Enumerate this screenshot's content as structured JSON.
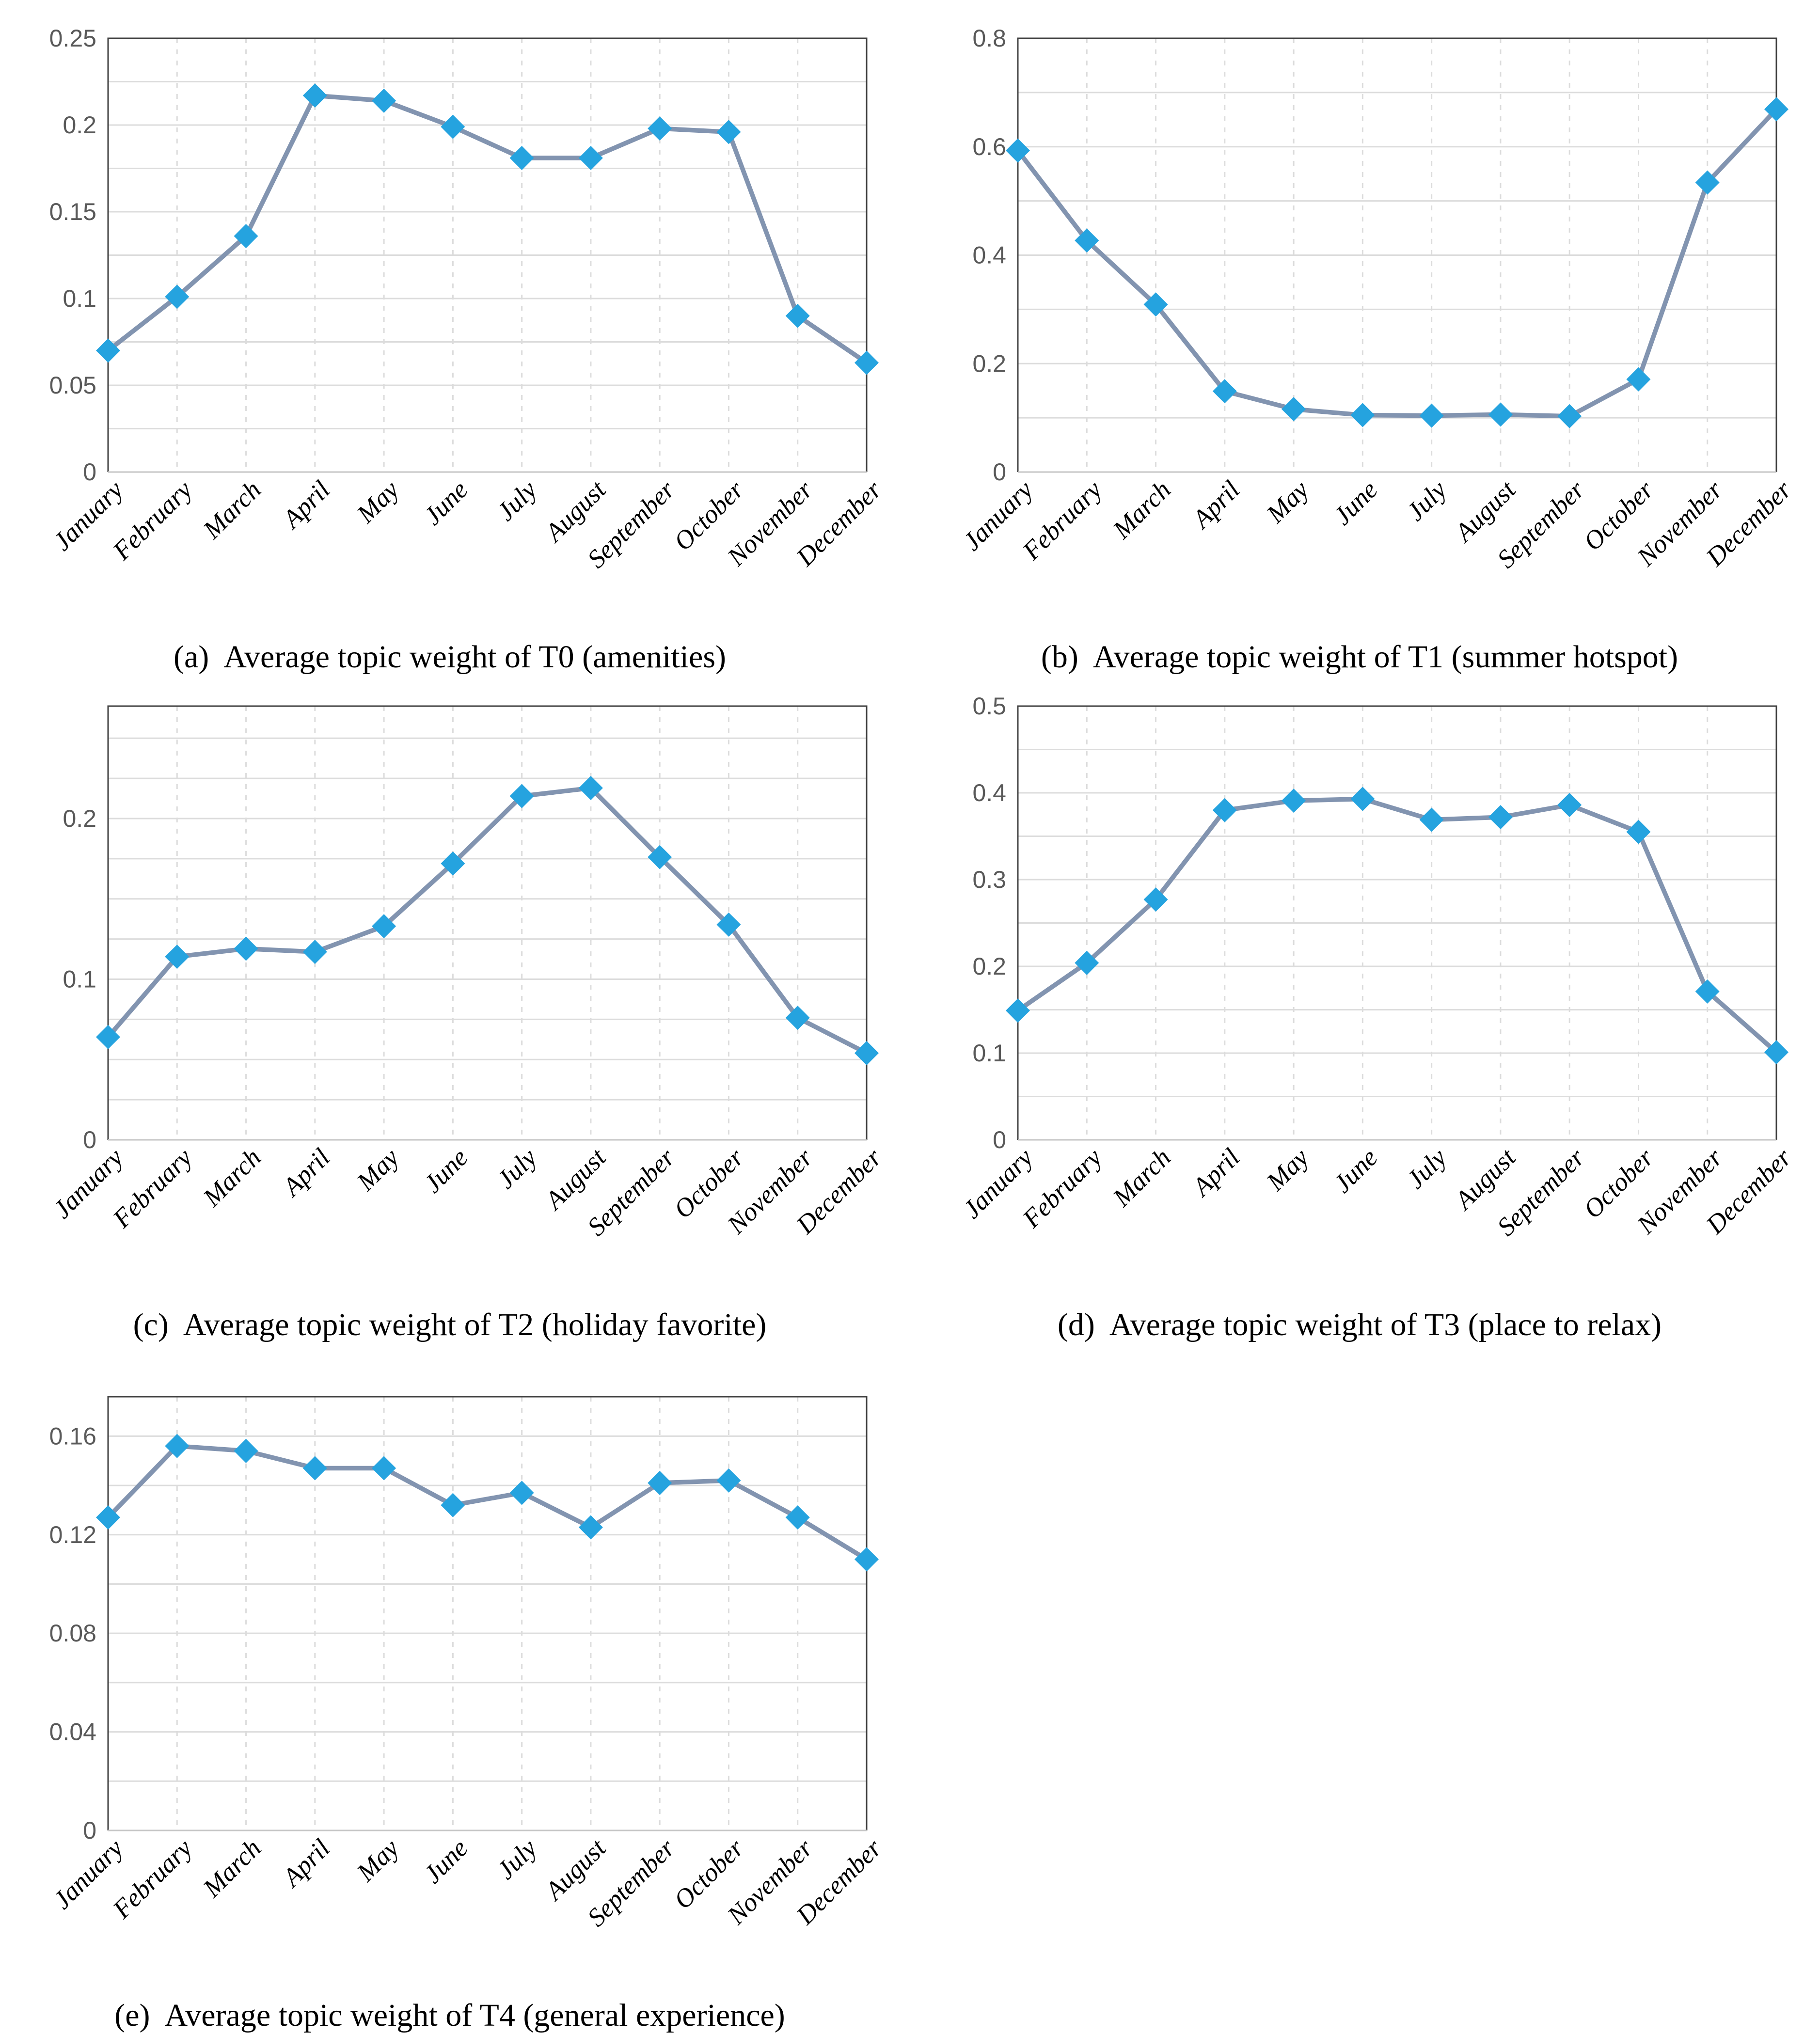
{
  "months": [
    "January",
    "February",
    "March",
    "April",
    "May",
    "June",
    "July",
    "August",
    "September",
    "October",
    "November",
    "December"
  ],
  "style": {
    "marker_color": "#25A3DF",
    "line_color": "#8294B0",
    "grid_color": "#DCDCDC",
    "border_color": "#404040",
    "bottom_axis_color": "#C6C6C6",
    "y_label_color": "#595959",
    "x_label_color": "#000000",
    "caption_color": "#000000"
  },
  "chart_data": [
    {
      "id": "a",
      "type": "line",
      "topic": "T0",
      "caption_label": "(a)",
      "caption_text": "Average topic weight of T0 (amenities)",
      "categories": [
        "January",
        "February",
        "March",
        "April",
        "May",
        "June",
        "July",
        "August",
        "September",
        "October",
        "November",
        "December"
      ],
      "values": [
        0.07,
        0.101,
        0.136,
        0.217,
        0.214,
        0.199,
        0.181,
        0.181,
        0.198,
        0.196,
        0.09,
        0.063
      ],
      "xlabel": "",
      "ylabel": "",
      "ylim": [
        0,
        0.25
      ],
      "y_ticks": [
        {
          "value": 0,
          "label": "0"
        },
        {
          "value": 0.05,
          "label": "0.05"
        },
        {
          "value": 0.1,
          "label": "0.1"
        },
        {
          "value": 0.15,
          "label": "0.15"
        },
        {
          "value": 0.2,
          "label": "0.2"
        },
        {
          "value": 0.25,
          "label": "0.25"
        }
      ],
      "grid_step": 0.025,
      "grid_max": 0.25,
      "grid": true,
      "legend": false
    },
    {
      "id": "b",
      "type": "line",
      "topic": "T1",
      "caption_label": "(b)",
      "caption_text": "Average topic weight of T1 (summer hotspot)",
      "categories": [
        "January",
        "February",
        "March",
        "April",
        "May",
        "June",
        "July",
        "August",
        "September",
        "October",
        "November",
        "December"
      ],
      "values": [
        0.593,
        0.427,
        0.309,
        0.149,
        0.116,
        0.105,
        0.104,
        0.106,
        0.103,
        0.171,
        0.534,
        0.669
      ],
      "xlabel": "",
      "ylabel": "",
      "ylim": [
        0,
        0.8
      ],
      "y_ticks": [
        {
          "value": 0,
          "label": "0"
        },
        {
          "value": 0.2,
          "label": "0.2"
        },
        {
          "value": 0.4,
          "label": "0.4"
        },
        {
          "value": 0.6,
          "label": "0.6"
        },
        {
          "value": 0.8,
          "label": "0.8"
        }
      ],
      "grid_step": 0.1,
      "grid_max": 0.8,
      "grid": true,
      "legend": false
    },
    {
      "id": "c",
      "type": "line",
      "topic": "T2",
      "caption_label": "(c)",
      "caption_text": "Average topic weight of T2 (holiday favorite)",
      "categories": [
        "January",
        "February",
        "March",
        "April",
        "May",
        "June",
        "July",
        "August",
        "September",
        "October",
        "November",
        "December"
      ],
      "values": [
        0.064,
        0.114,
        0.119,
        0.117,
        0.133,
        0.172,
        0.214,
        0.219,
        0.176,
        0.134,
        0.076,
        0.054
      ],
      "xlabel": "",
      "ylabel": "",
      "ylim": [
        0,
        0.27
      ],
      "y_ticks": [
        {
          "value": 0,
          "label": "0"
        },
        {
          "value": 0.1,
          "label": "0.1"
        },
        {
          "value": 0.2,
          "label": "0.2"
        }
      ],
      "grid_step": 0.025,
      "grid_max": 0.25,
      "grid": true,
      "legend": false
    },
    {
      "id": "d",
      "type": "line",
      "topic": "T3",
      "caption_label": "(d)",
      "caption_text": "Average topic weight of T3 (place to relax)",
      "categories": [
        "January",
        "February",
        "March",
        "April",
        "May",
        "June",
        "July",
        "August",
        "September",
        "October",
        "November",
        "December"
      ],
      "values": [
        0.149,
        0.204,
        0.277,
        0.38,
        0.391,
        0.393,
        0.369,
        0.372,
        0.386,
        0.355,
        0.171,
        0.101
      ],
      "xlabel": "",
      "ylabel": "",
      "ylim": [
        0,
        0.5
      ],
      "y_ticks": [
        {
          "value": 0,
          "label": "0"
        },
        {
          "value": 0.1,
          "label": "0.1"
        },
        {
          "value": 0.2,
          "label": "0.2"
        },
        {
          "value": 0.3,
          "label": "0.3"
        },
        {
          "value": 0.4,
          "label": "0.4"
        },
        {
          "value": 0.5,
          "label": "0.5"
        }
      ],
      "grid_step": 0.05,
      "grid_max": 0.5,
      "grid": true,
      "legend": false
    },
    {
      "id": "e",
      "type": "line",
      "topic": "T4",
      "caption_label": "(e)",
      "caption_text": "Average topic weight of T4 (general experience)",
      "categories": [
        "January",
        "February",
        "March",
        "April",
        "May",
        "June",
        "July",
        "August",
        "September",
        "October",
        "November",
        "December"
      ],
      "values": [
        0.127,
        0.156,
        0.154,
        0.147,
        0.147,
        0.132,
        0.137,
        0.123,
        0.141,
        0.142,
        0.127,
        0.11
      ],
      "xlabel": "",
      "ylabel": "",
      "ylim": [
        0,
        0.176
      ],
      "y_ticks": [
        {
          "value": 0,
          "label": "0"
        },
        {
          "value": 0.04,
          "label": "0.04"
        },
        {
          "value": 0.08,
          "label": "0.08"
        },
        {
          "value": 0.12,
          "label": "0.12"
        },
        {
          "value": 0.16,
          "label": "0.16"
        }
      ],
      "grid_step": 0.02,
      "grid_max": 0.16,
      "grid": true,
      "legend": false
    }
  ]
}
